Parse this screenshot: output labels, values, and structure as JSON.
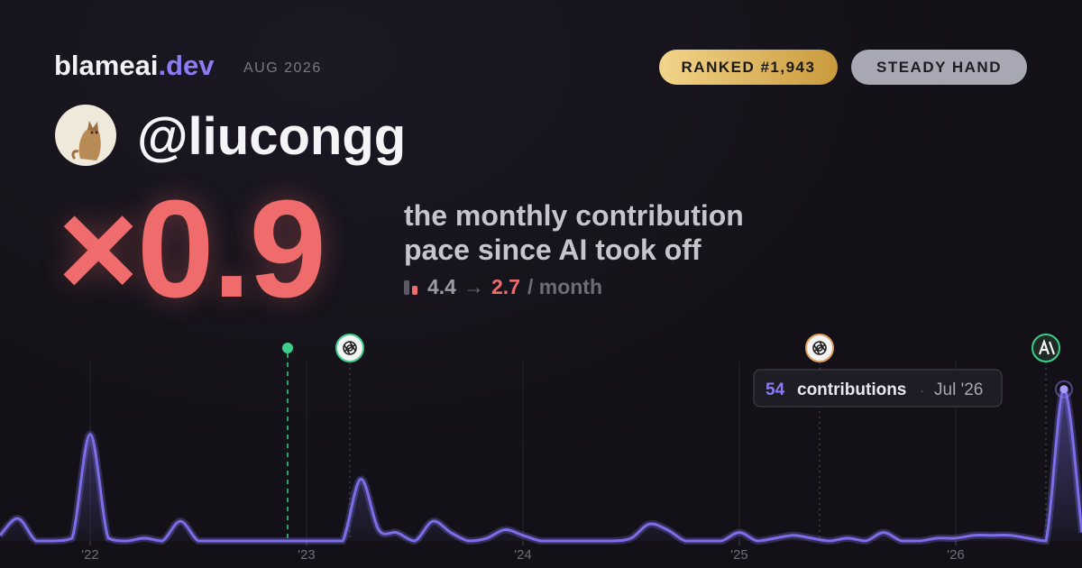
{
  "header": {
    "brand": "blameai",
    "brand_suffix": ".dev",
    "date": "AUG 2026",
    "badges": [
      "RANKED #1,943",
      "STEADY HAND"
    ]
  },
  "profile": {
    "handle": "@liucongg"
  },
  "headline": {
    "multiplier": "×0.9",
    "description": [
      "the monthly contribution",
      "pace since AI took off"
    ],
    "before": 4.4,
    "arrow": "→",
    "after": 2.7,
    "unit": "/ month"
  },
  "chart_data": {
    "type": "line",
    "color": "#7c6ee6",
    "categories": [
      null,
      null,
      null,
      null,
      null,
      "'22",
      null,
      null,
      null,
      null,
      null,
      null,
      null,
      null,
      null,
      null,
      null,
      "'23",
      null,
      null,
      null,
      null,
      null,
      null,
      null,
      null,
      null,
      null,
      null,
      "'24",
      null,
      null,
      null,
      null,
      null,
      null,
      null,
      null,
      null,
      null,
      null,
      "'25",
      null,
      null,
      null,
      null,
      null,
      null,
      null,
      null,
      null,
      null,
      null,
      "'26",
      null,
      null,
      null,
      null,
      null,
      null,
      null
    ],
    "values": [
      2,
      8,
      0,
      0,
      1,
      38,
      1,
      0,
      1,
      0,
      7,
      0,
      0,
      0,
      0,
      0,
      0,
      0,
      0,
      0,
      22,
      4,
      3,
      0,
      7,
      3,
      0,
      1,
      4,
      2,
      0,
      0,
      0,
      0,
      0,
      1,
      6,
      4,
      0,
      0,
      0,
      3,
      0,
      1,
      2,
      1,
      0,
      1,
      0,
      3,
      0,
      0,
      1,
      1,
      2,
      2,
      2,
      1,
      0,
      54,
      3
    ],
    "ylim": [
      0,
      60
    ],
    "tooltip": {
      "label": "contributions",
      "separator": "·",
      "date": "Jul '26"
    }
  }
}
